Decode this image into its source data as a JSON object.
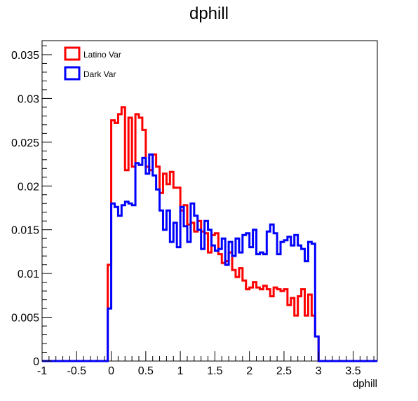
{
  "chart_data": {
    "type": "histogram",
    "title": "dphill",
    "xlabel": "dphill",
    "ylabel": "",
    "xlim": [
      -1,
      3.85
    ],
    "ylim": [
      0,
      0.0366
    ],
    "grid": false,
    "legend_position": "top-left",
    "x_ticks": [
      "-1",
      "-0.5",
      "0",
      "0.5",
      "1",
      "1.5",
      "2",
      "2.5",
      "3",
      "3.5"
    ],
    "x_tick_values": [
      -1,
      -0.5,
      0,
      0.5,
      1,
      1.5,
      2,
      2.5,
      3,
      3.5
    ],
    "y_ticks": [
      "0",
      "0.005",
      "0.01",
      "0.015",
      "0.02",
      "0.025",
      "0.03",
      "0.035"
    ],
    "y_tick_values": [
      0,
      0.005,
      0.01,
      0.015,
      0.02,
      0.025,
      0.03,
      0.035
    ],
    "bin_start": -0.05,
    "bin_width": 0.05,
    "series": [
      {
        "name": "Latino Var",
        "color": "#ff0000",
        "values": [
          0.011,
          0.0275,
          0.0272,
          0.0282,
          0.029,
          0.0218,
          0.0278,
          0.0222,
          0.0282,
          0.0278,
          0.0264,
          0.0222,
          0.0218,
          0.0236,
          0.0222,
          0.0192,
          0.0214,
          0.0202,
          0.0216,
          0.0198,
          0.0198,
          0.0172,
          0.0178,
          0.0156,
          0.0158,
          0.0148,
          0.016,
          0.0148,
          0.0146,
          0.0124,
          0.0144,
          0.0146,
          0.0122,
          0.0112,
          0.0114,
          0.0124,
          0.0104,
          0.0096,
          0.0106,
          0.0092,
          0.0082,
          0.0084,
          0.009,
          0.0084,
          0.0082,
          0.0086,
          0.0082,
          0.0074,
          0.0084,
          0.0082,
          0.008,
          0.0082,
          0.0064,
          0.0072,
          0.0052,
          0.0074,
          0.0082,
          0.0052,
          0.0076,
          0.0052,
          0.0028
        ]
      },
      {
        "name": "Dark Var",
        "color": "#0000ff",
        "values": [
          0.006,
          0.018,
          0.0176,
          0.0166,
          0.0178,
          0.0182,
          0.018,
          0.0178,
          0.0226,
          0.0224,
          0.0232,
          0.0214,
          0.0236,
          0.0212,
          0.0196,
          0.0172,
          0.015,
          0.0172,
          0.0136,
          0.0158,
          0.013,
          0.0176,
          0.0154,
          0.0136,
          0.018,
          0.0166,
          0.015,
          0.0128,
          0.016,
          0.015,
          0.0132,
          0.0126,
          0.0128,
          0.014,
          0.011,
          0.0136,
          0.012,
          0.014,
          0.0124,
          0.0144,
          0.0146,
          0.013,
          0.015,
          0.0122,
          0.0124,
          0.0122,
          0.0148,
          0.0156,
          0.0146,
          0.0122,
          0.0136,
          0.0138,
          0.0142,
          0.0132,
          0.0144,
          0.0132,
          0.0128,
          0.0114,
          0.0136,
          0.0134,
          0.0028
        ]
      }
    ]
  }
}
